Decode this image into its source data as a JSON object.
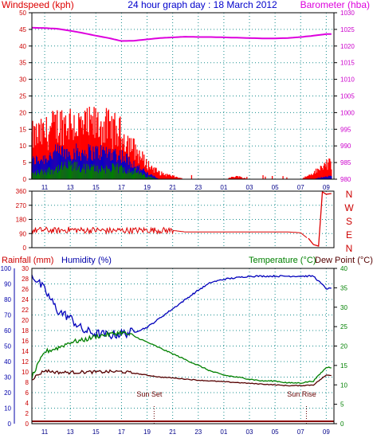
{
  "header": {
    "windspeed_label": "Windspeed (kph)",
    "title": "24 hour graph day : 18 March 2012",
    "barometer_label": "Barometer (hba)"
  },
  "colors": {
    "wind_red": "#ff0000",
    "wind_blue": "#0000cc",
    "wind_green": "#008000",
    "baro": "#dd00dd",
    "grid": "#1a8f8f",
    "left_axis": "#cc0000",
    "right_axis": "#cc00cc",
    "humidity": "#0000bb",
    "temperature": "#008000",
    "dewpoint": "#550000",
    "rain": "#880000",
    "rain_axis": "#cc0000",
    "hum_axis": "#0000aa",
    "temp_axis": "#008000"
  },
  "x_ticks": [
    "11",
    "13",
    "15",
    "17",
    "19",
    "21",
    "23",
    "01",
    "03",
    "05",
    "07",
    "09"
  ],
  "chart_data": [
    {
      "type": "line",
      "title": "24 hour graph day : 18 March 2012",
      "x": [
        10,
        11,
        12,
        13,
        14,
        15,
        16,
        17,
        18,
        19,
        20,
        21,
        22,
        23,
        24,
        25,
        26,
        27,
        28,
        29,
        30,
        31,
        32,
        33
      ],
      "x_tick_labels": [
        "11",
        "13",
        "15",
        "17",
        "19",
        "21",
        "23",
        "01",
        "03",
        "05",
        "07",
        "09"
      ],
      "ylabel": "Windspeed (kph)",
      "ylim": [
        0,
        50
      ],
      "y_ticks": [
        "0",
        "5",
        "10",
        "15",
        "20",
        "25",
        "30",
        "35",
        "40",
        "45",
        "50"
      ],
      "y2label": "Barometer (hba)",
      "y2lim": [
        980,
        1030
      ],
      "y2_ticks": [
        "980",
        "985",
        "990",
        "995",
        "1000",
        "1005",
        "1010",
        "1015",
        "1020",
        "1025",
        "1030"
      ],
      "series": [
        {
          "name": "Gust",
          "axis": "y",
          "values": [
            14,
            15,
            18,
            19,
            17,
            18,
            17,
            15,
            10,
            5,
            2,
            1,
            0,
            0,
            0,
            0,
            1,
            0,
            0,
            0,
            0,
            0,
            2,
            5
          ]
        },
        {
          "name": "Avg",
          "axis": "y",
          "values": [
            6,
            7,
            9,
            9,
            9,
            9,
            9,
            8,
            5,
            2,
            0,
            0,
            0,
            0,
            0,
            0,
            0,
            0,
            0,
            0,
            0,
            0,
            0,
            1
          ]
        },
        {
          "name": "Low",
          "axis": "y",
          "values": [
            2,
            3,
            4,
            5,
            4,
            4,
            4,
            4,
            3,
            1,
            0,
            0,
            0,
            0,
            0,
            0,
            0,
            0,
            0,
            0,
            0,
            0,
            0,
            0
          ]
        },
        {
          "name": "Barometer",
          "axis": "y2",
          "values": [
            1025.5,
            1025.4,
            1025.2,
            1024.6,
            1023.9,
            1023.1,
            1022.4,
            1021.5,
            1021.6,
            1022.0,
            1022.4,
            1022.6,
            1022.8,
            1022.7,
            1022.7,
            1022.6,
            1022.5,
            1022.4,
            1022.3,
            1022.3,
            1022.4,
            1022.7,
            1023.1,
            1023.6
          ]
        }
      ],
      "grid": true
    },
    {
      "type": "line",
      "x": [
        10,
        11,
        12,
        13,
        14,
        15,
        16,
        17,
        18,
        19,
        20,
        21,
        22,
        23,
        24,
        25,
        26,
        27,
        28,
        29,
        30,
        31,
        32,
        33
      ],
      "ylim": [
        0,
        360
      ],
      "y_ticks": [
        "0",
        "90",
        "180",
        "270",
        "360"
      ],
      "compass_labels": [
        "N",
        "W",
        "S",
        "E",
        "N"
      ],
      "series": [
        {
          "name": "Wind direction",
          "values": [
            110,
            112,
            108,
            115,
            110,
            112,
            108,
            110,
            110,
            112,
            110,
            110,
            100,
            100,
            100,
            100,
            100,
            100,
            100,
            100,
            100,
            95,
            30,
            340
          ]
        }
      ],
      "grid": true
    },
    {
      "type": "line",
      "x": [
        10,
        11,
        12,
        13,
        14,
        15,
        16,
        17,
        18,
        19,
        20,
        21,
        22,
        23,
        24,
        25,
        26,
        27,
        28,
        29,
        30,
        31,
        32,
        33
      ],
      "x_tick_labels": [
        "11",
        "13",
        "15",
        "17",
        "19",
        "21",
        "23",
        "01",
        "03",
        "05",
        "07",
        "09"
      ],
      "ylabel": "Rainfall (mm)",
      "ylim": [
        0,
        100
      ],
      "y_ticks": [
        "0",
        "10",
        "20",
        "30",
        "40",
        "50",
        "60",
        "70",
        "80",
        "90",
        "100"
      ],
      "ylabel_b": "Humidity (%)",
      "y_ticks_b": [
        "0",
        "2",
        "4",
        "6",
        "8",
        "10",
        "12",
        "14",
        "16",
        "18",
        "20",
        "22",
        "24",
        "26",
        "28",
        "30"
      ],
      "y2label": "Temperature (°C)",
      "y2label_b": "Dew Point (°C)",
      "y2lim": [
        0,
        40
      ],
      "y2_ticks": [
        "0",
        "5",
        "10",
        "15",
        "20",
        "25",
        "30",
        "35",
        "40"
      ],
      "annotations": [
        {
          "text": "Sun Set",
          "x": 19.3
        },
        {
          "text": "Sun Rise",
          "x": 31.2
        }
      ],
      "series": [
        {
          "name": "Humidity",
          "axis": "y",
          "values": [
            96,
            86,
            73,
            68,
            60,
            58,
            57,
            58,
            59,
            62,
            68,
            74,
            80,
            86,
            91,
            93,
            94,
            95,
            95,
            95,
            95,
            95,
            95,
            87
          ]
        },
        {
          "name": "Temperature",
          "axis": "y2",
          "values": [
            12.0,
            18.5,
            19.5,
            21.0,
            21.5,
            22.5,
            23.0,
            23.5,
            22.5,
            21.0,
            19.5,
            18.0,
            16.5,
            15.0,
            13.5,
            12.5,
            12.0,
            11.5,
            11.0,
            11.0,
            10.5,
            10.5,
            11.0,
            14.5
          ]
        },
        {
          "name": "Dew Point",
          "axis": "y2",
          "values": [
            11.5,
            13.7,
            13.2,
            13.2,
            13.3,
            13.3,
            13.4,
            13.4,
            13.0,
            12.5,
            12.0,
            11.8,
            11.5,
            11.2,
            11.0,
            10.8,
            10.6,
            10.4,
            10.2,
            10.0,
            9.8,
            9.8,
            10.0,
            12.5
          ]
        },
        {
          "name": "Rainfall",
          "axis": "y",
          "values": [
            0,
            0,
            0,
            0,
            0,
            0,
            0,
            0,
            0,
            0,
            0,
            0,
            0,
            0,
            0,
            0,
            0,
            0,
            0,
            0,
            0,
            0,
            0,
            0
          ]
        }
      ],
      "grid": true
    }
  ]
}
